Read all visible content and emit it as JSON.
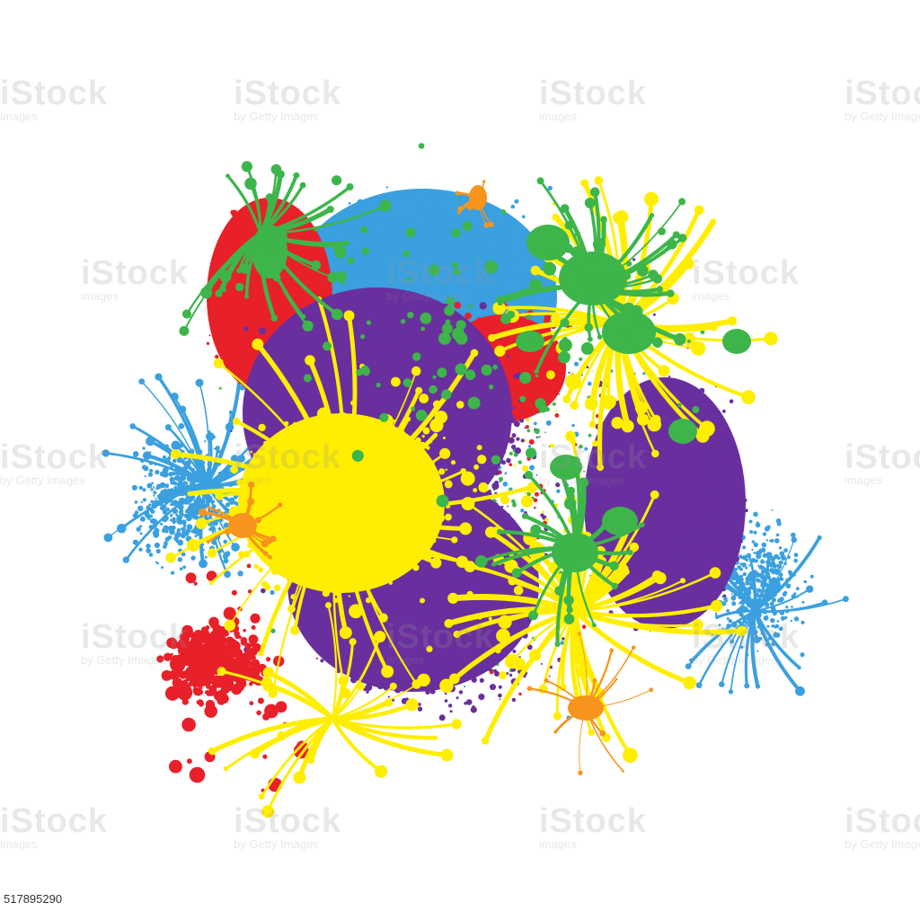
{
  "image": {
    "subject": "paint-splatter",
    "background": "#ffffff",
    "palette": {
      "yellow": "#ffee00",
      "purple": "#6a2f9e",
      "blue": "#3aa0e0",
      "red": "#e8202a",
      "green": "#3db54a",
      "orange": "#f7941d"
    }
  },
  "watermark": {
    "brand": "iStock",
    "tagline": "by Getty Images",
    "secondary": "images"
  },
  "image_id": "517895290"
}
